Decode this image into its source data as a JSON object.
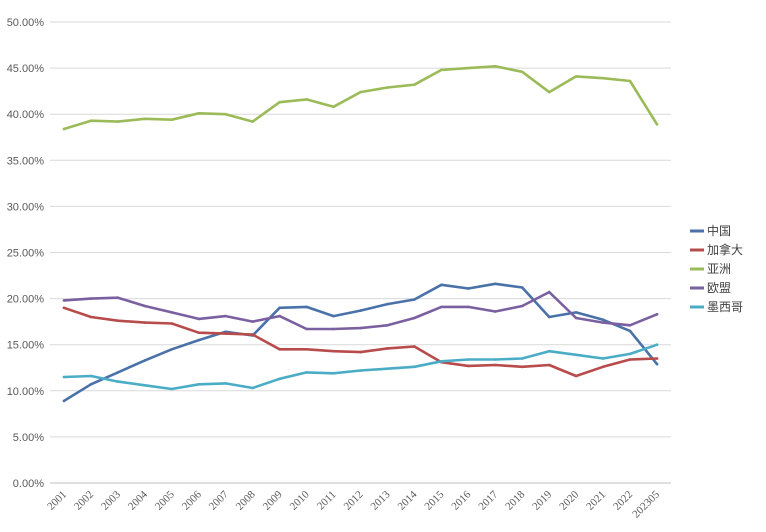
{
  "chart_data": {
    "type": "line",
    "title": "",
    "xlabel": "",
    "ylabel": "",
    "ylim": [
      0,
      50
    ],
    "y_ticks": [
      "0.00%",
      "5.00%",
      "10.00%",
      "15.00%",
      "20.00%",
      "25.00%",
      "30.00%",
      "35.00%",
      "40.00%",
      "45.00%",
      "50.00%"
    ],
    "grid": true,
    "legend_position": "right",
    "categories": [
      "2001",
      "2002",
      "2003",
      "2004",
      "2005",
      "2006",
      "2007",
      "2008",
      "2009",
      "2010",
      "2011",
      "2012",
      "2013",
      "2014",
      "2015",
      "2016",
      "2017",
      "2018",
      "2019",
      "2020",
      "2021",
      "2022",
      "202305"
    ],
    "series": [
      {
        "name": "中国",
        "color": "#4a72a8",
        "values": [
          8.9,
          10.7,
          12.0,
          13.3,
          14.5,
          15.5,
          16.4,
          16.0,
          19.0,
          19.1,
          18.1,
          18.7,
          19.4,
          19.9,
          21.5,
          21.1,
          21.6,
          21.2,
          18.0,
          18.5,
          17.7,
          16.5,
          12.9
        ]
      },
      {
        "name": "加拿大",
        "color": "#b84b4b",
        "values": [
          19.0,
          18.0,
          17.6,
          17.4,
          17.3,
          16.3,
          16.2,
          16.1,
          14.5,
          14.5,
          14.3,
          14.2,
          14.6,
          14.8,
          13.1,
          12.7,
          12.8,
          12.6,
          12.8,
          11.6,
          12.6,
          13.4,
          13.5
        ]
      },
      {
        "name": "亚洲",
        "color": "#9bbb59",
        "values": [
          38.4,
          39.3,
          39.2,
          39.5,
          39.4,
          40.1,
          40.0,
          39.2,
          41.3,
          41.6,
          40.8,
          42.4,
          42.9,
          43.2,
          44.8,
          45.0,
          45.2,
          44.6,
          42.4,
          44.1,
          43.9,
          43.6,
          38.9
        ]
      },
      {
        "name": "欧盟",
        "color": "#7a60a0",
        "values": [
          19.8,
          20.0,
          20.1,
          19.2,
          18.5,
          17.8,
          18.1,
          17.5,
          18.1,
          16.7,
          16.7,
          16.8,
          17.1,
          17.9,
          19.1,
          19.1,
          18.6,
          19.2,
          20.7,
          17.9,
          17.4,
          17.1,
          18.3
        ]
      },
      {
        "name": "墨西哥",
        "color": "#4bacc6",
        "values": [
          11.5,
          11.6,
          11.0,
          10.6,
          10.2,
          10.7,
          10.8,
          10.3,
          11.3,
          12.0,
          11.9,
          12.2,
          12.4,
          12.6,
          13.2,
          13.4,
          13.4,
          13.5,
          14.3,
          13.9,
          13.5,
          14.0,
          15.0
        ]
      }
    ]
  }
}
